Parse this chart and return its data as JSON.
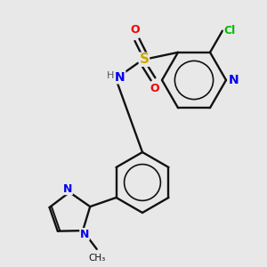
{
  "bg": "#e8e8e8",
  "bond_color": "#111111",
  "atom_colors": {
    "N": "#0000ee",
    "O": "#ee0000",
    "S": "#ccaa00",
    "Cl": "#00bb00",
    "H": "#555555",
    "C": "#111111"
  },
  "figsize": [
    3.0,
    3.0
  ],
  "dpi": 100,
  "lw": 1.7
}
